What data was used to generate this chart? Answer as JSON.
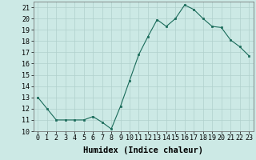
{
  "x": [
    0,
    1,
    2,
    3,
    4,
    5,
    6,
    7,
    8,
    9,
    10,
    11,
    12,
    13,
    14,
    15,
    16,
    17,
    18,
    19,
    20,
    21,
    22,
    23
  ],
  "y": [
    13,
    12,
    11,
    11,
    11,
    11,
    11.3,
    10.8,
    10.2,
    12.2,
    14.5,
    16.8,
    18.4,
    19.9,
    19.3,
    20.0,
    21.2,
    20.8,
    20.0,
    19.3,
    19.2,
    18.1,
    17.5,
    16.7
  ],
  "line_color": "#1a6b5a",
  "marker_color": "#1a6b5a",
  "bg_color": "#cce9e5",
  "grid_color": "#b0d0cc",
  "xlabel": "Humidex (Indice chaleur)",
  "ylim": [
    10,
    21.5
  ],
  "xlim": [
    -0.5,
    23.5
  ],
  "yticks": [
    10,
    11,
    12,
    13,
    14,
    15,
    16,
    17,
    18,
    19,
    20,
    21
  ],
  "xticks": [
    0,
    1,
    2,
    3,
    4,
    5,
    6,
    7,
    8,
    9,
    10,
    11,
    12,
    13,
    14,
    15,
    16,
    17,
    18,
    19,
    20,
    21,
    22,
    23
  ],
  "tick_fontsize": 6,
  "label_fontsize": 7.5
}
